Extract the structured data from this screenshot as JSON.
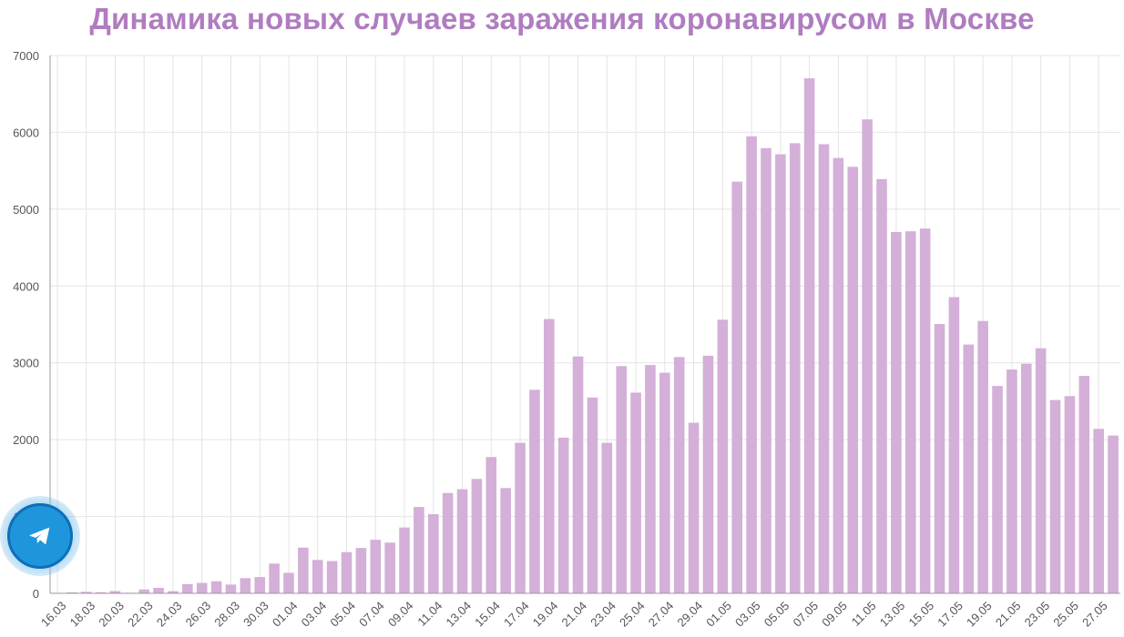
{
  "chart_data": {
    "type": "bar",
    "title": "Динамика новых случаев заражения коронавирусом в Москве",
    "categories": [
      "16.03",
      "17.03",
      "18.03",
      "19.03",
      "20.03",
      "21.03",
      "22.03",
      "23.03",
      "24.03",
      "25.03",
      "26.03",
      "27.03",
      "28.03",
      "29.03",
      "30.03",
      "31.03",
      "01.04",
      "02.04",
      "03.04",
      "04.04",
      "05.04",
      "06.04",
      "07.04",
      "08.04",
      "09.04",
      "10.04",
      "11.04",
      "12.04",
      "13.04",
      "14.04",
      "15.04",
      "16.04",
      "17.04",
      "18.04",
      "19.04",
      "20.04",
      "21.04",
      "22.04",
      "23.04",
      "24.04",
      "25.04",
      "26.04",
      "27.04",
      "28.04",
      "29.04",
      "30.04",
      "01.05",
      "02.05",
      "03.05",
      "04.05",
      "05.05",
      "06.05",
      "07.05",
      "08.05",
      "09.05",
      "10.05",
      "11.05",
      "12.05",
      "13.05",
      "14.05",
      "15.05",
      "16.05",
      "17.05",
      "18.05",
      "19.05",
      "20.05",
      "21.05",
      "22.05",
      "23.05",
      "24.05",
      "25.05",
      "26.05",
      "27.05",
      "28.05"
    ],
    "visible_tick_labels": [
      "16.03",
      "18.03",
      "20.03",
      "22.03",
      "24.03",
      "26.03",
      "28.03",
      "30.03",
      "01.04",
      "03.04",
      "05.04",
      "07.04",
      "09.04",
      "11.04",
      "13.04",
      "15.04",
      "17.04",
      "19.04",
      "21.04",
      "23.04",
      "25.04",
      "27.04",
      "29.04",
      "01.05",
      "03.05",
      "05.05",
      "07.05",
      "09.05",
      "11.05",
      "13.05",
      "15.05",
      "17.05",
      "19.05",
      "21.05",
      "23.05",
      "25.05",
      "27.05"
    ],
    "values": [
      6,
      12,
      20,
      14,
      29,
      7,
      50,
      71,
      28,
      120,
      136,
      157,
      114,
      197,
      212,
      387,
      267,
      595,
      434,
      420,
      536,
      591,
      697,
      660,
      857,
      1124,
      1030,
      1306,
      1355,
      1489,
      1774,
      1370,
      1959,
      2649,
      3570,
      2026,
      3083,
      2548,
      1959,
      2957,
      2612,
      2972,
      2871,
      3075,
      2220,
      3093,
      3561,
      5358,
      5948,
      5795,
      5714,
      5858,
      6703,
      5846,
      5667,
      5551,
      6169,
      5392,
      4703,
      4712,
      4748,
      3505,
      3855,
      3238,
      3545,
      2699,
      2913,
      2988,
      3190,
      2516,
      2567,
      2830,
      2140,
      2054
    ],
    "ylim": [
      0,
      7000
    ],
    "yticks": [
      0,
      1000,
      2000,
      3000,
      4000,
      5000,
      6000,
      7000
    ],
    "xlabel": "",
    "ylabel": "",
    "grid": true,
    "bar_color": "#d4afd8",
    "grid_color": "#e4e4e4",
    "title_color": "#b07cc0"
  },
  "overlay": {
    "telegram_button_icon": "telegram-paper-plane-icon",
    "telegram_color": "#1f96dc"
  }
}
